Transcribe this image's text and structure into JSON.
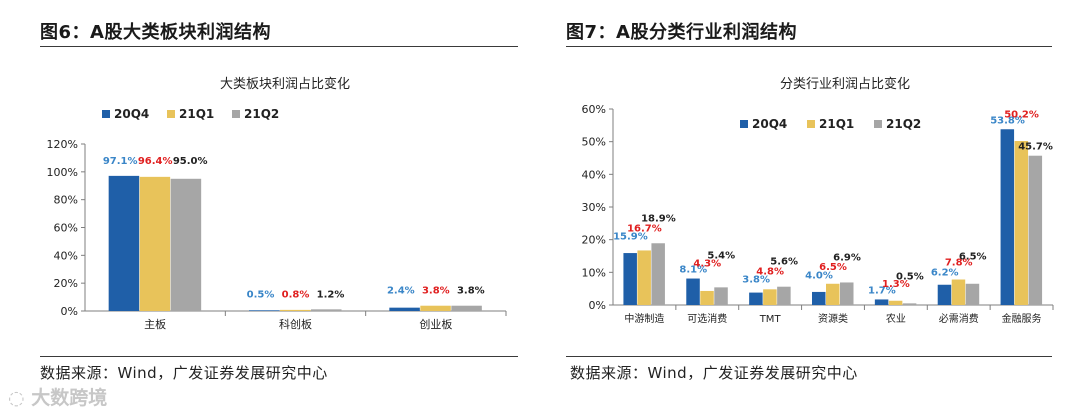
{
  "figures": [
    {
      "title": "图6：A股大类板块利润结构",
      "source": "数据来源：Wind，广发证券发展研究中心"
    },
    {
      "title": "图7：A股分类行业利润结构",
      "source": "数据来源：Wind，广发证券发展研究中心"
    }
  ],
  "watermark": "大数跨境",
  "chart_data": [
    {
      "type": "bar",
      "title": "大类板块利润占比变化",
      "categories": [
        "主板",
        "科创板",
        "创业板"
      ],
      "series": [
        {
          "name": "20Q4",
          "values": [
            97.1,
            0.5,
            2.4
          ],
          "labels": [
            "97.1%",
            "0.5%",
            "2.4%"
          ],
          "color": "#1f5fa8",
          "label_color": "#3a86c8"
        },
        {
          "name": "21Q1",
          "values": [
            96.4,
            0.8,
            3.8
          ],
          "labels": [
            "96.4%",
            "0.8%",
            "3.8%"
          ],
          "color": "#e8c35a",
          "label_color": "#e02020"
        },
        {
          "name": "21Q2",
          "values": [
            95.0,
            1.2,
            3.8
          ],
          "labels": [
            "95.0%",
            "1.2%",
            "3.8%"
          ],
          "color": "#a6a6a6",
          "label_color": "#222222"
        }
      ],
      "ylim": [
        0,
        120
      ],
      "yticks": [
        "0%",
        "20%",
        "40%",
        "60%",
        "80%",
        "100%",
        "120%"
      ],
      "legend_position": "top-left",
      "grid": false
    },
    {
      "type": "bar",
      "title": "分类行业利润占比变化",
      "categories": [
        "中游制造",
        "可选消费",
        "TMT",
        "资源类",
        "农业",
        "必需消费",
        "金融服务"
      ],
      "series": [
        {
          "name": "20Q4",
          "values": [
            15.9,
            8.1,
            3.8,
            4.0,
            1.7,
            6.2,
            53.8
          ],
          "labels": [
            "15.9%",
            "8.1%",
            "3.8%",
            "4.0%",
            "1.7%",
            "6.2%",
            "53.8%"
          ],
          "color": "#1f5fa8",
          "label_color": "#3a86c8"
        },
        {
          "name": "21Q1",
          "values": [
            16.7,
            4.3,
            4.8,
            6.5,
            1.3,
            7.8,
            50.2
          ],
          "labels": [
            "16.7%",
            "4.3%",
            "4.8%",
            "6.5%",
            "1.3%",
            "7.8%",
            "50.2%"
          ],
          "color": "#e8c35a",
          "label_color": "#e02020"
        },
        {
          "name": "21Q2",
          "values": [
            18.9,
            5.4,
            5.6,
            6.9,
            0.5,
            6.5,
            45.7
          ],
          "labels": [
            "18.9%",
            "5.4%",
            "5.6%",
            "6.9%",
            "0.5%",
            "6.5%",
            "45.7%"
          ],
          "color": "#a6a6a6",
          "label_color": "#222222"
        }
      ],
      "ylim": [
        0,
        60
      ],
      "yticks": [
        "0%",
        "10%",
        "20%",
        "30%",
        "40%",
        "50%",
        "60%"
      ],
      "legend_position": "top-left",
      "grid": false
    }
  ]
}
